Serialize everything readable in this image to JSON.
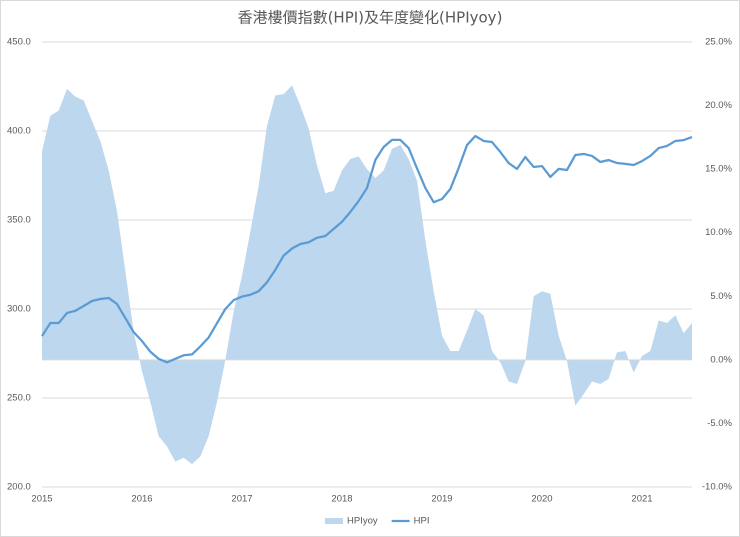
{
  "chart_data": {
    "type": "area-line",
    "title": "香港樓價指數(HPI)及年度變化(HPIyoy)",
    "categories": [
      "2015",
      null,
      null,
      null,
      null,
      null,
      null,
      null,
      null,
      null,
      null,
      null,
      "2016",
      null,
      null,
      null,
      null,
      null,
      null,
      null,
      null,
      null,
      null,
      null,
      "2017",
      null,
      null,
      null,
      null,
      null,
      null,
      null,
      null,
      null,
      null,
      null,
      "2018",
      null,
      null,
      null,
      null,
      null,
      null,
      null,
      null,
      null,
      null,
      null,
      "2019",
      null,
      null,
      null,
      null,
      null,
      null,
      null,
      null,
      null,
      null,
      null,
      "2020",
      null,
      null,
      null,
      null,
      null,
      null,
      null,
      null,
      null,
      null,
      null,
      "2021",
      null,
      null,
      null,
      null,
      null,
      null
    ],
    "series": [
      {
        "name": "HPIyoy",
        "color": "#bdd7ee",
        "axis": "y2",
        "values": [
          16.4,
          19.2,
          19.6,
          21.3,
          20.7,
          20.4,
          18.8,
          17.2,
          14.9,
          11.7,
          7.0,
          2.2,
          -0.9,
          -3.3,
          -6.0,
          -6.8,
          -8.0,
          -7.7,
          -8.2,
          -7.6,
          -6.0,
          -3.3,
          0.0,
          3.8,
          6.6,
          10.1,
          13.7,
          18.4,
          20.8,
          20.9,
          21.6,
          20.0,
          18.2,
          15.3,
          13.1,
          13.3,
          14.9,
          15.8,
          16.0,
          15.0,
          14.3,
          14.9,
          16.6,
          16.9,
          15.8,
          14.1,
          9.4,
          5.4,
          1.9,
          0.7,
          0.7,
          2.3,
          4.0,
          3.5,
          0.7,
          -0.2,
          -1.7,
          -1.9,
          -0.1,
          5.0,
          5.4,
          5.2,
          1.9,
          -0.1,
          -3.6,
          -2.7,
          -1.7,
          -1.9,
          -1.5,
          0.6,
          0.7,
          -1.0,
          0.3,
          0.7,
          3.1,
          2.9,
          3.5,
          2.1,
          2.9
        ]
      },
      {
        "name": "HPI",
        "color": "#5b9bd5",
        "values": [
          284.8,
          292.1,
          292.1,
          297.8,
          299.0,
          301.7,
          304.5,
          305.6,
          306.2,
          302.8,
          294.9,
          287.0,
          282,
          276,
          272,
          270,
          272,
          274,
          274.5,
          279,
          284,
          292,
          300,
          305,
          307,
          308,
          310,
          315,
          322,
          330,
          334,
          336.5,
          337.5,
          340,
          341,
          345,
          349,
          354.5,
          360.7,
          368,
          383.7,
          391,
          395,
          395,
          390.4,
          379,
          368,
          360,
          361.8,
          367.4,
          379.2,
          392.1,
          397.2,
          394.4,
          393.8,
          388.2,
          382,
          378.7,
          385.4,
          379.8,
          380.3,
          374.2,
          378.7,
          378.1,
          386.5,
          387.1,
          386,
          382.6,
          383.7,
          382,
          381.5,
          380.9,
          383.1,
          386,
          390.4,
          391.6,
          394.4,
          394.9,
          396.6
        ]
      }
    ],
    "ylim": [
      200,
      450
    ],
    "yticks": [
      {
        "value": 200,
        "label": "200.0"
      },
      {
        "value": 250,
        "label": "250.0"
      },
      {
        "value": 300,
        "label": "300.0"
      },
      {
        "value": 350,
        "label": "350.0"
      },
      {
        "value": 400,
        "label": "400.0"
      },
      {
        "value": 450,
        "label": "450.0"
      }
    ],
    "y2lim": [
      -10,
      25
    ],
    "y2ticks": [
      {
        "value": -10,
        "label": "-10.0%"
      },
      {
        "value": -5,
        "label": "-5.0%"
      },
      {
        "value": 0,
        "label": "0.0%"
      },
      {
        "value": 5,
        "label": "5.0%"
      },
      {
        "value": 10,
        "label": "10.0%"
      },
      {
        "value": 15,
        "label": "15.0%"
      },
      {
        "value": 20,
        "label": "20.0%"
      },
      {
        "value": 25,
        "label": "25.0%"
      }
    ],
    "grid": true,
    "legend": "bottom"
  }
}
